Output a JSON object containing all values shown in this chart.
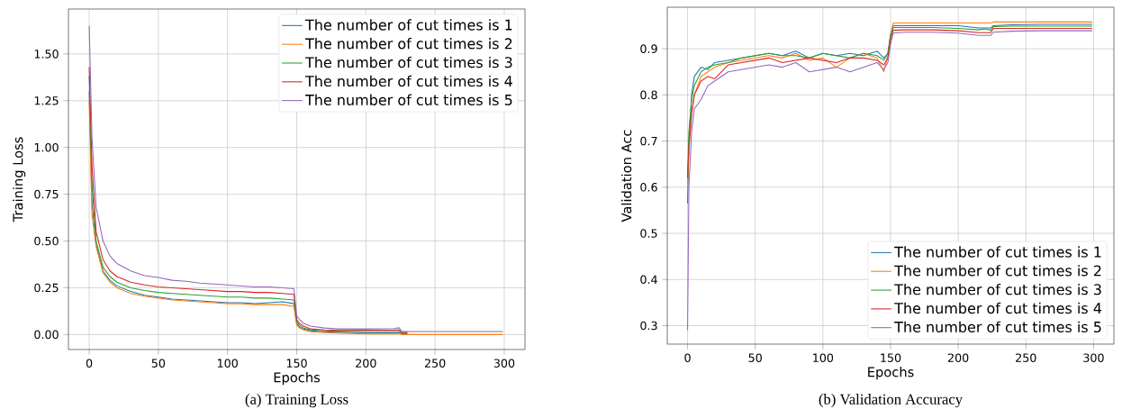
{
  "chart_data": [
    {
      "type": "line",
      "xlabel": "Epochs",
      "ylabel": "Training Loss",
      "annotations": [
        "(a)  Training Loss"
      ],
      "xlim": [
        -15,
        315
      ],
      "ylim": [
        -0.08,
        1.74
      ],
      "xticks": [
        0,
        50,
        100,
        150,
        200,
        250,
        300
      ],
      "yticks": [
        {
          "value": 0,
          "label": "0.00"
        },
        {
          "value": 0.25,
          "label": "0.25"
        },
        {
          "value": 0.5,
          "label": "0.50"
        },
        {
          "value": 0.75,
          "label": "0.75"
        },
        {
          "value": 1.0,
          "label": "1.00"
        },
        {
          "value": 1.25,
          "label": "1.25"
        },
        {
          "value": 1.5,
          "label": "1.50"
        }
      ],
      "grid": true,
      "legend": "top right",
      "x": [
        0,
        2,
        5,
        10,
        15,
        20,
        30,
        40,
        50,
        60,
        70,
        80,
        90,
        100,
        110,
        120,
        130,
        140,
        148,
        150,
        152,
        155,
        160,
        170,
        180,
        200,
        220,
        224,
        226,
        230,
        250,
        275,
        299
      ],
      "series": [
        {
          "name": "The number of cut times is 1",
          "color": "#1f77b4",
          "values": [
            1.3,
            0.7,
            0.48,
            0.34,
            0.29,
            0.26,
            0.23,
            0.21,
            0.2,
            0.19,
            0.185,
            0.18,
            0.175,
            0.17,
            0.17,
            0.165,
            0.17,
            0.175,
            0.165,
            0.06,
            0.04,
            0.03,
            0.02,
            0.015,
            0.012,
            0.009,
            0.009,
            0.009,
            0.004,
            0.004,
            null,
            null,
            null
          ]
        },
        {
          "name": "The number of cut times is 2",
          "color": "#ff7f0e",
          "values": [
            1.25,
            0.64,
            0.47,
            0.33,
            0.28,
            0.25,
            0.22,
            0.205,
            0.195,
            0.185,
            0.18,
            0.175,
            0.17,
            0.165,
            0.165,
            0.16,
            0.16,
            0.16,
            0.15,
            0.05,
            0.035,
            0.025,
            0.015,
            0.01,
            0.008,
            0.003,
            0.003,
            0.003,
            0.0,
            0.0,
            0.0,
            0.0,
            0.0
          ]
        },
        {
          "name": "The number of cut times is 3",
          "color": "#2ca02c",
          "values": [
            1.38,
            0.8,
            0.5,
            0.36,
            0.31,
            0.28,
            0.25,
            0.235,
            0.225,
            0.22,
            0.215,
            0.21,
            0.205,
            0.2,
            0.2,
            0.195,
            0.195,
            0.19,
            0.185,
            0.07,
            0.05,
            0.035,
            0.025,
            0.02,
            0.018,
            0.016,
            0.016,
            0.016,
            0.008,
            0.008,
            null,
            null,
            null
          ]
        },
        {
          "name": "The number of cut times is 4",
          "color": "#d62728",
          "values": [
            1.43,
            0.9,
            0.55,
            0.4,
            0.34,
            0.31,
            0.28,
            0.265,
            0.255,
            0.25,
            0.245,
            0.24,
            0.235,
            0.23,
            0.23,
            0.225,
            0.225,
            0.22,
            0.215,
            0.08,
            0.06,
            0.045,
            0.03,
            0.025,
            0.022,
            0.023,
            0.023,
            0.025,
            0.012,
            0.012,
            null,
            null,
            null
          ]
        },
        {
          "name": "The number of cut times is 5",
          "color": "#9467bd",
          "values": [
            1.65,
            1.05,
            0.68,
            0.5,
            0.42,
            0.38,
            0.34,
            0.315,
            0.305,
            0.29,
            0.285,
            0.275,
            0.27,
            0.265,
            0.26,
            0.255,
            0.255,
            0.25,
            0.245,
            0.1,
            0.08,
            0.06,
            0.045,
            0.035,
            0.03,
            0.03,
            0.032,
            0.036,
            0.016,
            0.016,
            0.016,
            0.016,
            0.016
          ]
        }
      ]
    },
    {
      "type": "line",
      "xlabel": "Epochs",
      "ylabel": "Validation Acc",
      "annotations": [
        "(b)  Validation Accuracy"
      ],
      "xlim": [
        -15,
        315
      ],
      "ylim": [
        0.26,
        0.99
      ],
      "xticks": [
        0,
        50,
        100,
        150,
        200,
        250,
        300
      ],
      "yticks": [
        0.3,
        0.4,
        0.5,
        0.6,
        0.7,
        0.8,
        0.9
      ],
      "grid": true,
      "legend": "bottom right",
      "x": [
        0,
        1,
        3,
        5,
        10,
        15,
        20,
        30,
        40,
        50,
        60,
        70,
        80,
        90,
        100,
        110,
        120,
        130,
        140,
        145,
        148,
        150,
        152,
        160,
        180,
        200,
        215,
        220,
        224,
        226,
        240,
        260,
        280,
        299
      ],
      "series": [
        {
          "name": "The number of cut times is 1",
          "color": "#1f77b4",
          "values": [
            0.565,
            0.7,
            0.8,
            0.84,
            0.86,
            0.855,
            0.87,
            0.875,
            0.88,
            0.885,
            0.89,
            0.885,
            0.895,
            0.88,
            0.89,
            0.885,
            0.89,
            0.885,
            0.895,
            0.88,
            0.89,
            0.93,
            0.95,
            0.95,
            0.95,
            0.95,
            0.945,
            0.945,
            0.945,
            0.95,
            0.952,
            0.953,
            0.953,
            0.953
          ]
        },
        {
          "name": "The number of cut times is 2",
          "color": "#ff7f0e",
          "values": [
            0.6,
            0.68,
            0.76,
            0.8,
            0.84,
            0.85,
            0.86,
            0.87,
            0.875,
            0.88,
            0.885,
            0.88,
            0.89,
            0.875,
            0.88,
            0.86,
            0.88,
            0.89,
            0.88,
            0.85,
            0.885,
            0.93,
            0.956,
            0.956,
            0.956,
            0.956,
            0.956,
            0.956,
            0.956,
            0.958,
            0.958,
            0.958,
            0.958,
            0.958
          ]
        },
        {
          "name": "The number of cut times is 3",
          "color": "#2ca02c",
          "values": [
            0.62,
            0.72,
            0.79,
            0.82,
            0.85,
            0.86,
            0.865,
            0.87,
            0.88,
            0.885,
            0.89,
            0.885,
            0.885,
            0.88,
            0.89,
            0.885,
            0.88,
            0.89,
            0.885,
            0.875,
            0.89,
            0.93,
            0.946,
            0.946,
            0.946,
            0.944,
            0.941,
            0.943,
            0.94,
            0.948,
            0.949,
            0.949,
            0.949,
            0.949
          ]
        },
        {
          "name": "The number of cut times is 4",
          "color": "#d62728",
          "values": [
            0.62,
            0.69,
            0.76,
            0.8,
            0.83,
            0.84,
            0.835,
            0.865,
            0.87,
            0.875,
            0.88,
            0.87,
            0.875,
            0.88,
            0.875,
            0.87,
            0.88,
            0.88,
            0.875,
            0.865,
            0.88,
            0.92,
            0.94,
            0.941,
            0.941,
            0.939,
            0.935,
            0.935,
            0.935,
            0.944,
            0.944,
            0.944,
            0.944,
            0.944
          ]
        },
        {
          "name": "The number of cut times is 5",
          "color": "#9467bd",
          "values": [
            0.29,
            0.6,
            0.72,
            0.77,
            0.79,
            0.82,
            0.83,
            0.85,
            0.855,
            0.86,
            0.865,
            0.86,
            0.87,
            0.85,
            0.855,
            0.86,
            0.85,
            0.86,
            0.87,
            0.855,
            0.87,
            0.91,
            0.934,
            0.936,
            0.936,
            0.934,
            0.929,
            0.929,
            0.929,
            0.936,
            0.938,
            0.939,
            0.939,
            0.939
          ]
        }
      ]
    }
  ]
}
